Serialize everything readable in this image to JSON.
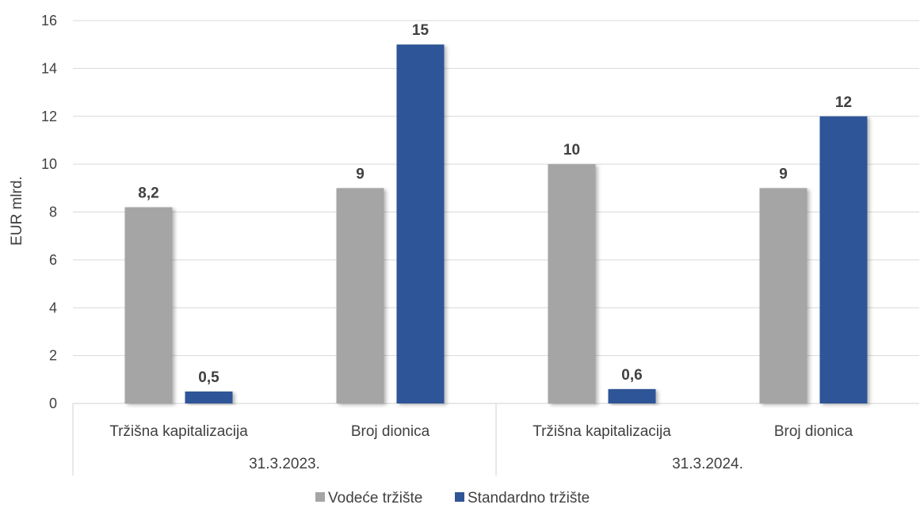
{
  "chart_data": {
    "type": "bar",
    "title": "",
    "ylabel": "EUR mlrd.",
    "ylim": [
      0,
      16
    ],
    "yticks": [
      0,
      2,
      4,
      6,
      8,
      10,
      12,
      14,
      16
    ],
    "grid": true,
    "legend_position": "bottom",
    "groups": [
      {
        "label": "31.3.2023.",
        "categories": [
          "Tržišna kapitalizacija",
          "Broj dionica"
        ]
      },
      {
        "label": "31.3.2024.",
        "categories": [
          "Tržišna kapitalizacija",
          "Broj dionica"
        ]
      }
    ],
    "categories": [
      "Tržišna kapitalizacija",
      "Broj dionica",
      "Tržišna kapitalizacija",
      "Broj dionica"
    ],
    "series": [
      {
        "name": "Vodeće tržište",
        "color": "#a5a5a5",
        "values": [
          8.2,
          9,
          10,
          9
        ],
        "labels": [
          "8,2",
          "9",
          "10",
          "9"
        ]
      },
      {
        "name": "Standardno tržište",
        "color": "#2f5597",
        "values": [
          0.5,
          15,
          0.6,
          12
        ],
        "labels": [
          "0,5",
          "15",
          "0,6",
          "12"
        ]
      }
    ]
  }
}
